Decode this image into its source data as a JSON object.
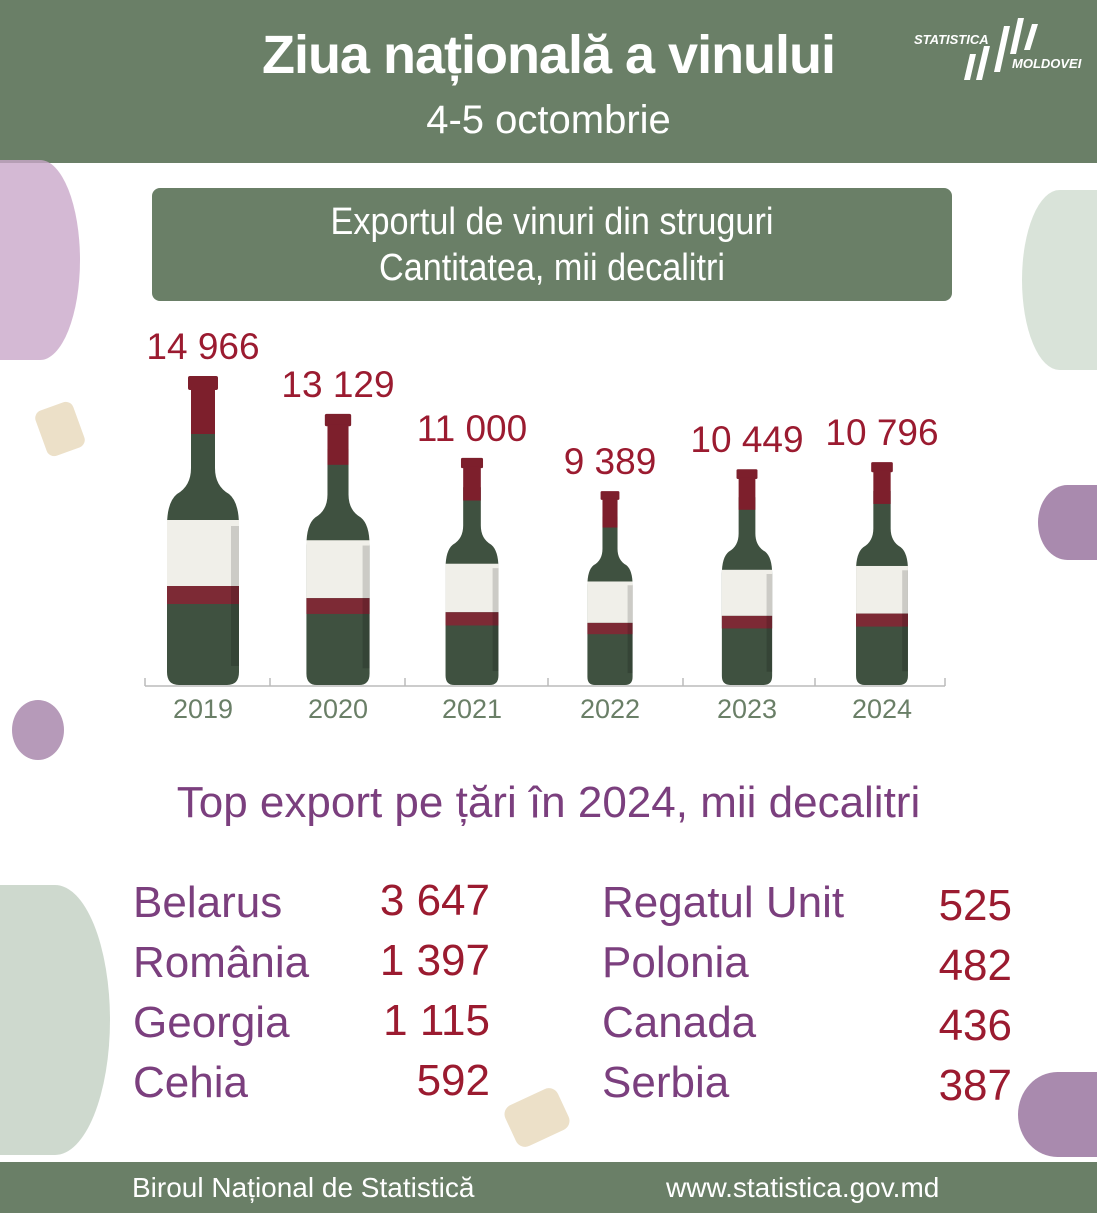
{
  "header": {
    "title": "Ziua națională a vinului",
    "subtitle": "4-5 octombrie"
  },
  "logo": {
    "line1": "STATISTICA",
    "line2": "MOLDOVEI"
  },
  "chart_box": {
    "line1": "Exportul de vinuri din struguri",
    "line2": "Cantitatea, mii decalitri"
  },
  "chart_data": {
    "type": "bar",
    "title": "Exportul de vinuri din struguri",
    "ylabel": "Cantitatea, mii decalitri",
    "categories": [
      "2019",
      "2020",
      "2021",
      "2022",
      "2023",
      "2024"
    ],
    "values": [
      14966,
      13129,
      11000,
      9389,
      10449,
      10796
    ],
    "value_labels": [
      "14 966",
      "13 129",
      "11 000",
      "9 389",
      "10 449",
      "10 796"
    ],
    "mark": "wine-bottle",
    "colors": {
      "bottle": "#3f5140",
      "cap": "#7d1f2c",
      "label": "#f0efe9",
      "band": "#7d2a35",
      "value_text": "#9b1b30"
    }
  },
  "top": {
    "title": "Top export pe țări în 2024, mii decalitri",
    "left": [
      {
        "country": "Belarus",
        "value": "3 647"
      },
      {
        "country": "România",
        "value": "1 397"
      },
      {
        "country": "Georgia",
        "value": "1 115"
      },
      {
        "country": "Cehia",
        "value": "592"
      }
    ],
    "right": [
      {
        "country": "Regatul Unit",
        "value": "525"
      },
      {
        "country": "Polonia",
        "value": "482"
      },
      {
        "country": "Canada",
        "value": "436"
      },
      {
        "country": "Serbia",
        "value": "387"
      }
    ]
  },
  "footer": {
    "left": "Biroul Național de Statistică",
    "right": "www.statistica.gov.md"
  },
  "colors": {
    "green": "#6a7f67",
    "purple": "#7b3f7e",
    "red": "#9b1b30"
  }
}
